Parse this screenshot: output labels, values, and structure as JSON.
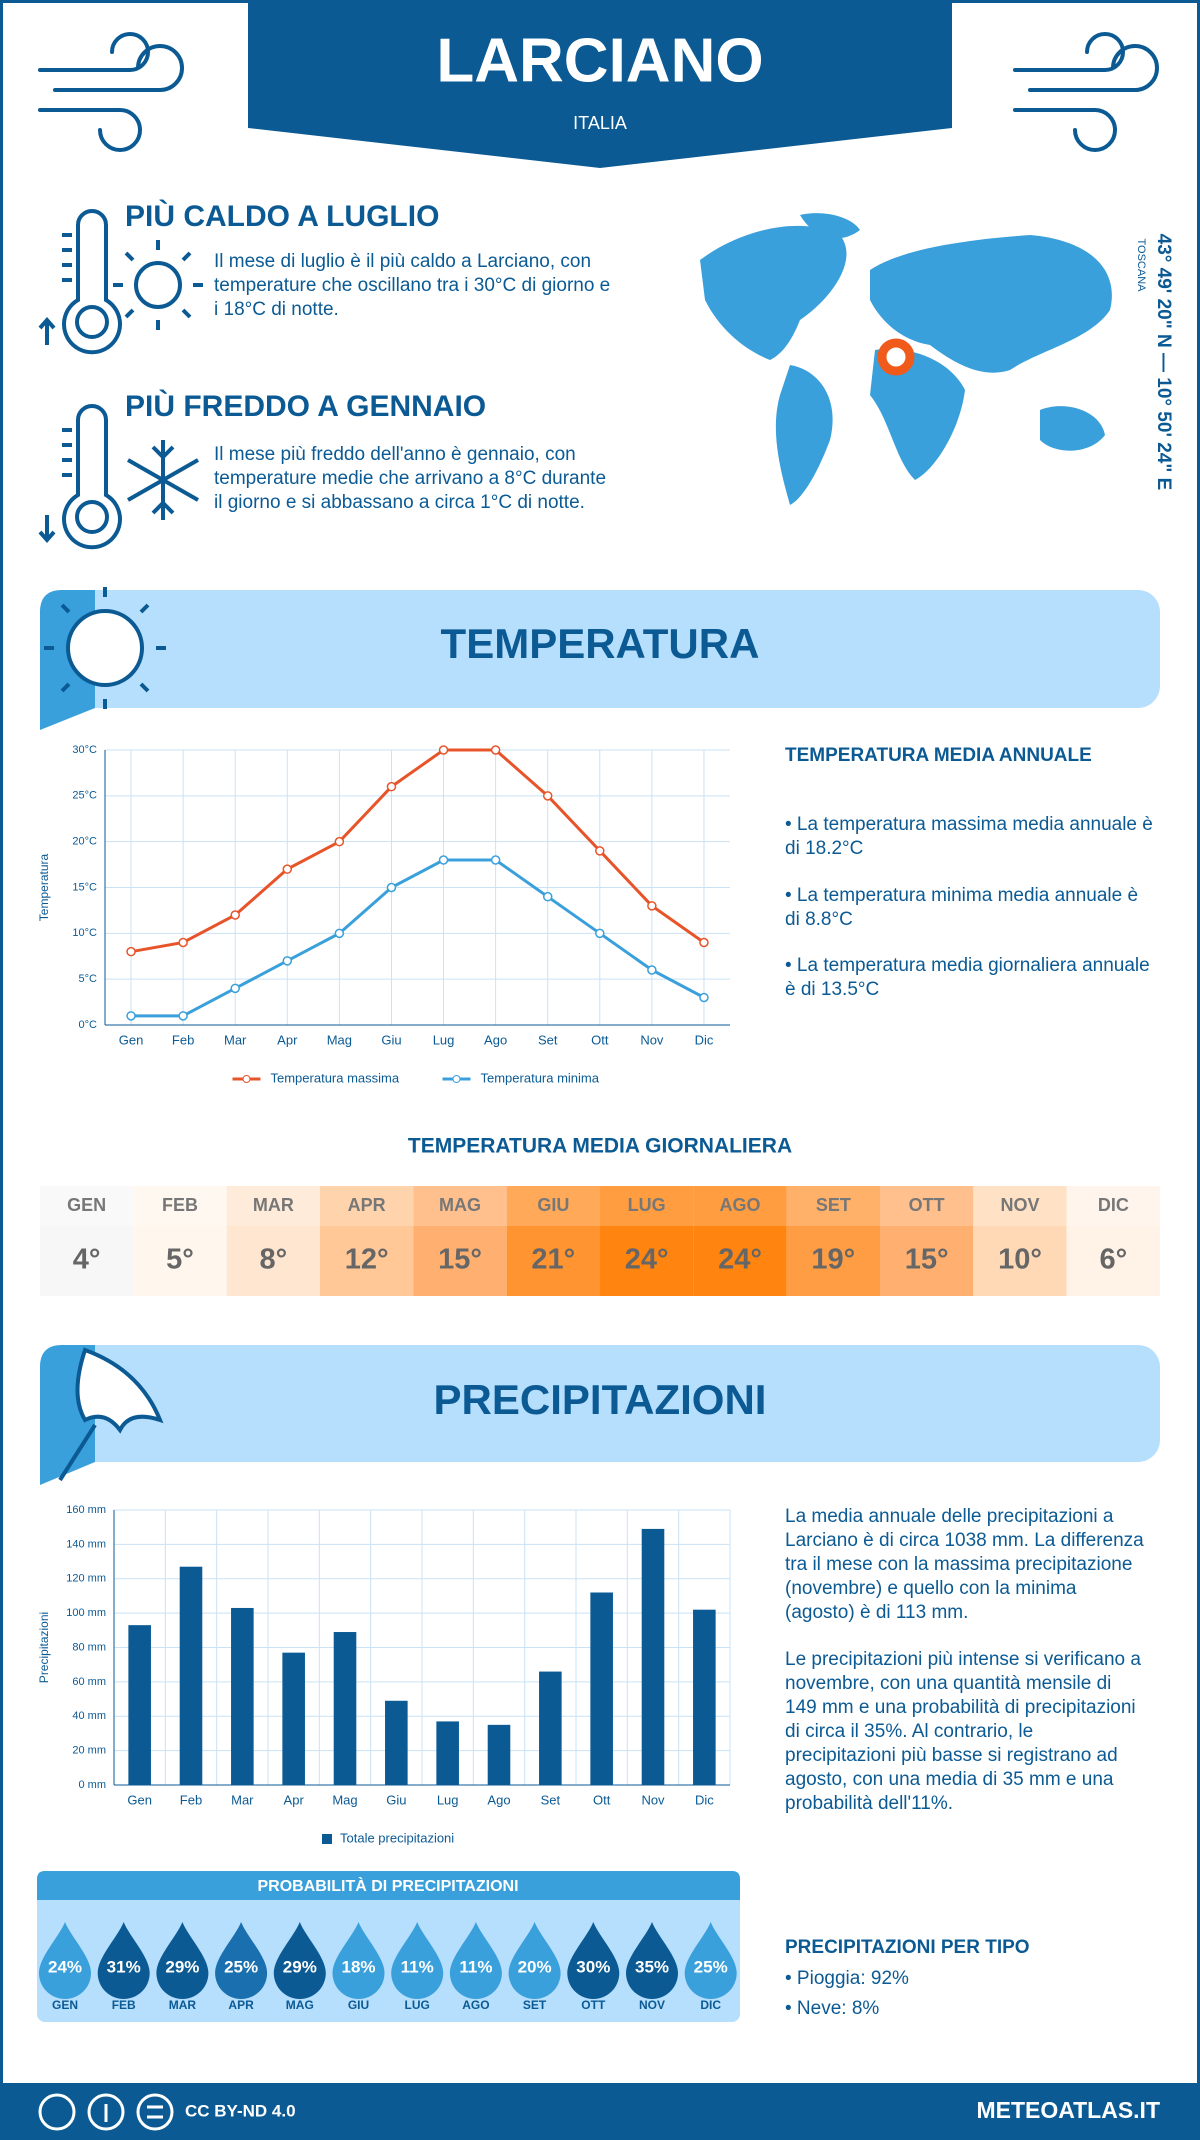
{
  "header": {
    "title": "LARCIANO",
    "subtitle": "ITALIA"
  },
  "highlights": [
    {
      "title": "PIÙ CALDO A LUGLIO",
      "text": "Il mese di luglio è il più caldo a Larciano, con temperature che oscillano tra i 30°C di giorno e i 18°C di notte."
    },
    {
      "title": "PIÙ FREDDO A GENNAIO",
      "text": "Il mese più freddo dell'anno è gennaio, con temperature medie che arrivano a 8°C durante il giorno e si abbassano a circa 1°C di notte."
    }
  ],
  "location": {
    "coordinates": "43° 49' 20\" N — 10° 50' 24\" E",
    "region": "TOSCANA"
  },
  "temperature": {
    "section_title": "TEMPERATURA",
    "annual_title": "TEMPERATURA MEDIA ANNUALE",
    "annual_notes": [
      "• La temperatura massima media annuale è di 18.2°C",
      "• La temperatura minima media annuale è di 8.8°C",
      "• La temperatura media giornaliera annuale è di 13.5°C"
    ]
  },
  "daily_temperature": {
    "title": "TEMPERATURA MEDIA GIORNALIERA",
    "months": [
      "GEN",
      "FEB",
      "MAR",
      "APR",
      "MAG",
      "GIU",
      "LUG",
      "AGO",
      "SET",
      "OTT",
      "NOV",
      "DIC"
    ],
    "values": [
      "4°",
      "5°",
      "8°",
      "12°",
      "15°",
      "21°",
      "24°",
      "24°",
      "19°",
      "15°",
      "10°",
      "6°"
    ],
    "colors": [
      "#f7f7f7",
      "#fff6ee",
      "#ffe6d0",
      "#ffc896",
      "#ffb070",
      "#ff9430",
      "#ff8410",
      "#ff8410",
      "#ff9d45",
      "#ffb070",
      "#ffd9b6",
      "#fff3e8"
    ]
  },
  "precipitation": {
    "section_title": "PRECIPITAZIONI",
    "paragraphs": [
      "La media annuale delle precipitazioni a Larciano è di circa 1038 mm. La differenza tra il mese con la massima precipitazione (novembre) e quello con la minima (agosto) è di 113 mm.",
      "Le precipitazioni più intense si verificano a novembre, con una quantità mensile di 149 mm e una probabilità di precipitazioni di circa il 35%. Al contrario, le precipitazioni più basse si registrano ad agosto, con una media di 35 mm e una probabilità dell'11%."
    ],
    "types_title": "PRECIPITAZIONI PER TIPO",
    "types": [
      "• Pioggia: 92%",
      "• Neve: 8%"
    ]
  },
  "probability": {
    "title": "PROBABILITÀ DI PRECIPITAZIONI",
    "months": [
      "GEN",
      "FEB",
      "MAR",
      "APR",
      "MAG",
      "GIU",
      "LUG",
      "AGO",
      "SET",
      "OTT",
      "NOV",
      "DIC"
    ],
    "values": [
      "24%",
      "31%",
      "29%",
      "25%",
      "29%",
      "18%",
      "11%",
      "11%",
      "20%",
      "30%",
      "35%",
      "25%"
    ],
    "colors": [
      "#3aa0dc",
      "#0b5a94",
      "#0b5a94",
      "#1a6fae",
      "#0b5a94",
      "#3aa0dc",
      "#3aa0dc",
      "#3aa0dc",
      "#3aa0dc",
      "#0b5a94",
      "#0b5a94",
      "#3aa0dc"
    ]
  },
  "chart_data": [
    {
      "type": "line",
      "y_label": "Temperatura",
      "categories": [
        "Gen",
        "Feb",
        "Mar",
        "Apr",
        "Mag",
        "Giu",
        "Lug",
        "Ago",
        "Set",
        "Ott",
        "Nov",
        "Dic"
      ],
      "series": [
        {
          "name": "Temperatura massima",
          "color": "#e8542a",
          "values": [
            8,
            9,
            12,
            17,
            20,
            26,
            30,
            30,
            25,
            19,
            13,
            9
          ]
        },
        {
          "name": "Temperatura minima",
          "color": "#3aa0dc",
          "values": [
            1,
            1,
            4,
            7,
            10,
            15,
            18,
            18,
            14,
            10,
            6,
            3
          ]
        }
      ],
      "ylim": [
        0,
        30
      ],
      "yticks": [
        {
          "value": 0,
          "label": "0°C"
        },
        {
          "value": 5,
          "label": "5°C"
        },
        {
          "value": 10,
          "label": "10°C"
        },
        {
          "value": 15,
          "label": "15°C"
        },
        {
          "value": 20,
          "label": "20°C"
        },
        {
          "value": 25,
          "label": "25°C"
        },
        {
          "value": 30,
          "label": "30°C"
        }
      ],
      "grid": true
    },
    {
      "type": "bar",
      "y_label": "Precipitazioni",
      "categories": [
        "Gen",
        "Feb",
        "Mar",
        "Apr",
        "Mag",
        "Giu",
        "Lug",
        "Ago",
        "Set",
        "Ott",
        "Nov",
        "Dic"
      ],
      "series": [
        {
          "name": "Totale precipitazioni",
          "color": "#0b5a94",
          "values": [
            93,
            127,
            103,
            77,
            89,
            49,
            37,
            35,
            66,
            112,
            149,
            102
          ]
        }
      ],
      "ylim": [
        0,
        160
      ],
      "yticks": [
        {
          "value": 0,
          "label": "0 mm"
        },
        {
          "value": 20,
          "label": "20 mm"
        },
        {
          "value": 40,
          "label": "40 mm"
        },
        {
          "value": 60,
          "label": "60 mm"
        },
        {
          "value": 80,
          "label": "80 mm"
        },
        {
          "value": 100,
          "label": "100 mm"
        },
        {
          "value": 120,
          "label": "120 mm"
        },
        {
          "value": 140,
          "label": "140 mm"
        },
        {
          "value": 160,
          "label": "160 mm"
        }
      ],
      "grid": true
    }
  ],
  "footer": {
    "license": "CC BY-ND 4.0",
    "site": "METEOATLAS.IT"
  }
}
